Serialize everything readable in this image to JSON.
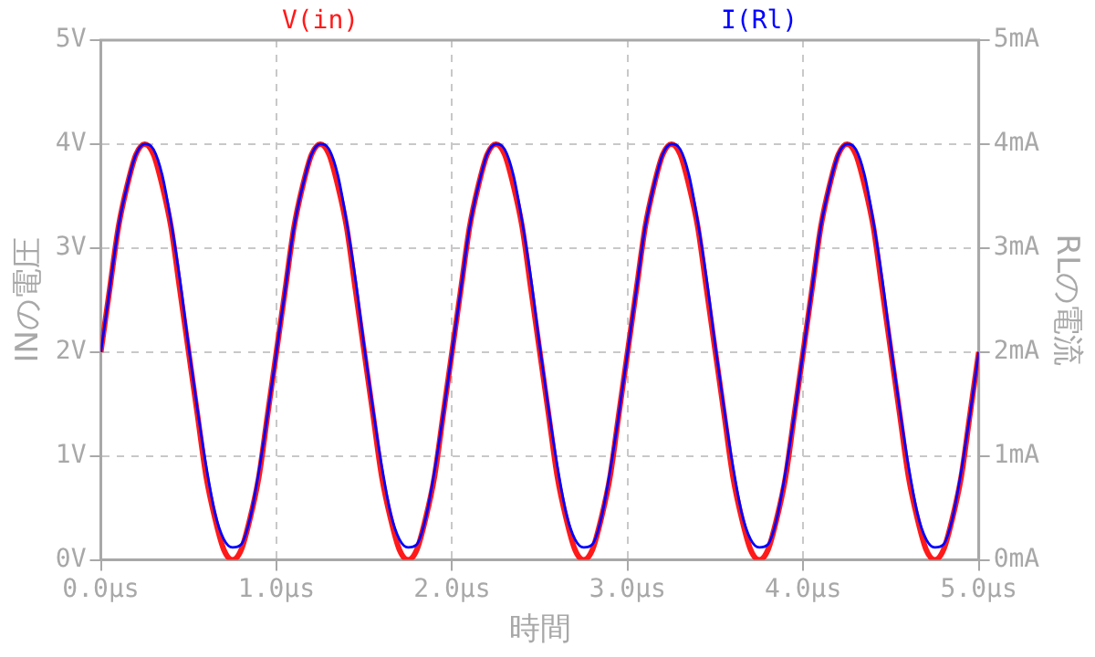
{
  "chart_data": {
    "type": "line",
    "xlabel": "時間",
    "ylabel": "INの電圧",
    "y2label": "RLの電流",
    "x": [
      0,
      0.05,
      0.1,
      0.15,
      0.2,
      0.25,
      0.3,
      0.35,
      0.4,
      0.45,
      0.5,
      0.55,
      0.6,
      0.65,
      0.7,
      0.75,
      0.8,
      0.85,
      0.9,
      0.95,
      1,
      1.05,
      1.1,
      1.15,
      1.2,
      1.25,
      1.3,
      1.35,
      1.4,
      1.45,
      1.5,
      1.55,
      1.6,
      1.65,
      1.7,
      1.75,
      1.8,
      1.85,
      1.9,
      1.95,
      2,
      2.05,
      2.1,
      2.15,
      2.2,
      2.25,
      2.3,
      2.35,
      2.4,
      2.45,
      2.5,
      2.55,
      2.6,
      2.65,
      2.7,
      2.75,
      2.8,
      2.85,
      2.9,
      2.95,
      3,
      3.05,
      3.1,
      3.15,
      3.2,
      3.25,
      3.3,
      3.35,
      3.4,
      3.45,
      3.5,
      3.55,
      3.6,
      3.65,
      3.7,
      3.75,
      3.8,
      3.85,
      3.9,
      3.95,
      4,
      4.05,
      4.1,
      4.15,
      4.2,
      4.25,
      4.3,
      4.35,
      4.4,
      4.45,
      4.5,
      4.55,
      4.6,
      4.65,
      4.7,
      4.75,
      4.8,
      4.85,
      4.9,
      4.95,
      5
    ],
    "series": [
      {
        "name": "V(in)",
        "color": "#ff1a1a",
        "values": [
          2,
          2.6,
          3.2,
          3.6,
          3.9,
          4,
          3.9,
          3.6,
          3.2,
          2.6,
          2,
          1.4,
          0.8,
          0.4,
          0.1,
          0,
          0.1,
          0.4,
          0.8,
          1.4,
          2,
          2.6,
          3.2,
          3.6,
          3.9,
          4,
          3.9,
          3.6,
          3.2,
          2.6,
          2,
          1.4,
          0.8,
          0.4,
          0.1,
          0,
          0.1,
          0.4,
          0.8,
          1.4,
          2,
          2.6,
          3.2,
          3.6,
          3.9,
          4,
          3.9,
          3.6,
          3.2,
          2.6,
          2,
          1.4,
          0.8,
          0.4,
          0.1,
          0,
          0.1,
          0.4,
          0.8,
          1.4,
          2,
          2.6,
          3.2,
          3.6,
          3.9,
          4,
          3.9,
          3.6,
          3.2,
          2.6,
          2,
          1.4,
          0.8,
          0.4,
          0.1,
          0,
          0.1,
          0.4,
          0.8,
          1.4,
          2,
          2.6,
          3.2,
          3.6,
          3.9,
          4,
          3.9,
          3.6,
          3.2,
          2.6,
          2,
          1.4,
          0.8,
          0.4,
          0.1,
          0,
          0.1,
          0.4,
          0.8,
          1.4,
          2
        ]
      },
      {
        "name": "I(Rl)",
        "color": "#0000ff",
        "axis": "y2",
        "values": [
          2,
          2.6,
          3.2,
          3.6,
          3.9,
          4,
          3.95,
          3.7,
          3.25,
          2.7,
          2.05,
          1.45,
          0.9,
          0.45,
          0.2,
          0.12,
          0.15,
          0.4,
          0.85,
          1.4,
          2,
          2.6,
          3.2,
          3.6,
          3.9,
          4,
          3.95,
          3.7,
          3.25,
          2.7,
          2.05,
          1.45,
          0.9,
          0.45,
          0.2,
          0.12,
          0.15,
          0.4,
          0.85,
          1.4,
          2,
          2.6,
          3.2,
          3.6,
          3.9,
          4,
          3.95,
          3.7,
          3.25,
          2.7,
          2.05,
          1.45,
          0.9,
          0.45,
          0.2,
          0.12,
          0.15,
          0.4,
          0.85,
          1.4,
          2,
          2.6,
          3.2,
          3.6,
          3.9,
          4,
          3.95,
          3.7,
          3.25,
          2.7,
          2.05,
          1.45,
          0.9,
          0.45,
          0.2,
          0.12,
          0.15,
          0.4,
          0.85,
          1.4,
          2,
          2.6,
          3.2,
          3.6,
          3.9,
          4,
          3.95,
          3.7,
          3.25,
          2.7,
          2.05,
          1.45,
          0.9,
          0.45,
          0.2,
          0.12,
          0.15,
          0.4,
          0.85,
          1.4,
          2
        ]
      }
    ],
    "xlim": [
      0,
      5
    ],
    "xticks": [
      {
        "value": 0,
        "label": "0.0µs"
      },
      {
        "value": 1,
        "label": "1.0µs"
      },
      {
        "value": 2,
        "label": "2.0µs"
      },
      {
        "value": 3,
        "label": "3.0µs"
      },
      {
        "value": 4,
        "label": "4.0µs"
      },
      {
        "value": 5,
        "label": "5.0µs"
      }
    ],
    "ylim": [
      0,
      5
    ],
    "yticks": [
      {
        "value": 0,
        "label": "0V"
      },
      {
        "value": 1,
        "label": "1V"
      },
      {
        "value": 2,
        "label": "2V"
      },
      {
        "value": 3,
        "label": "3V"
      },
      {
        "value": 4,
        "label": "4V"
      },
      {
        "value": 5,
        "label": "5V"
      }
    ],
    "y2lim": [
      0,
      5
    ],
    "y2ticks": [
      {
        "value": 0,
        "label": "0mA"
      },
      {
        "value": 1,
        "label": "1mA"
      },
      {
        "value": 2,
        "label": "2mA"
      },
      {
        "value": 3,
        "label": "3mA"
      },
      {
        "value": 4,
        "label": "4mA"
      },
      {
        "value": 5,
        "label": "5mA"
      }
    ],
    "grid": true,
    "legend": "top",
    "marker": "none",
    "line_style": "solid"
  }
}
